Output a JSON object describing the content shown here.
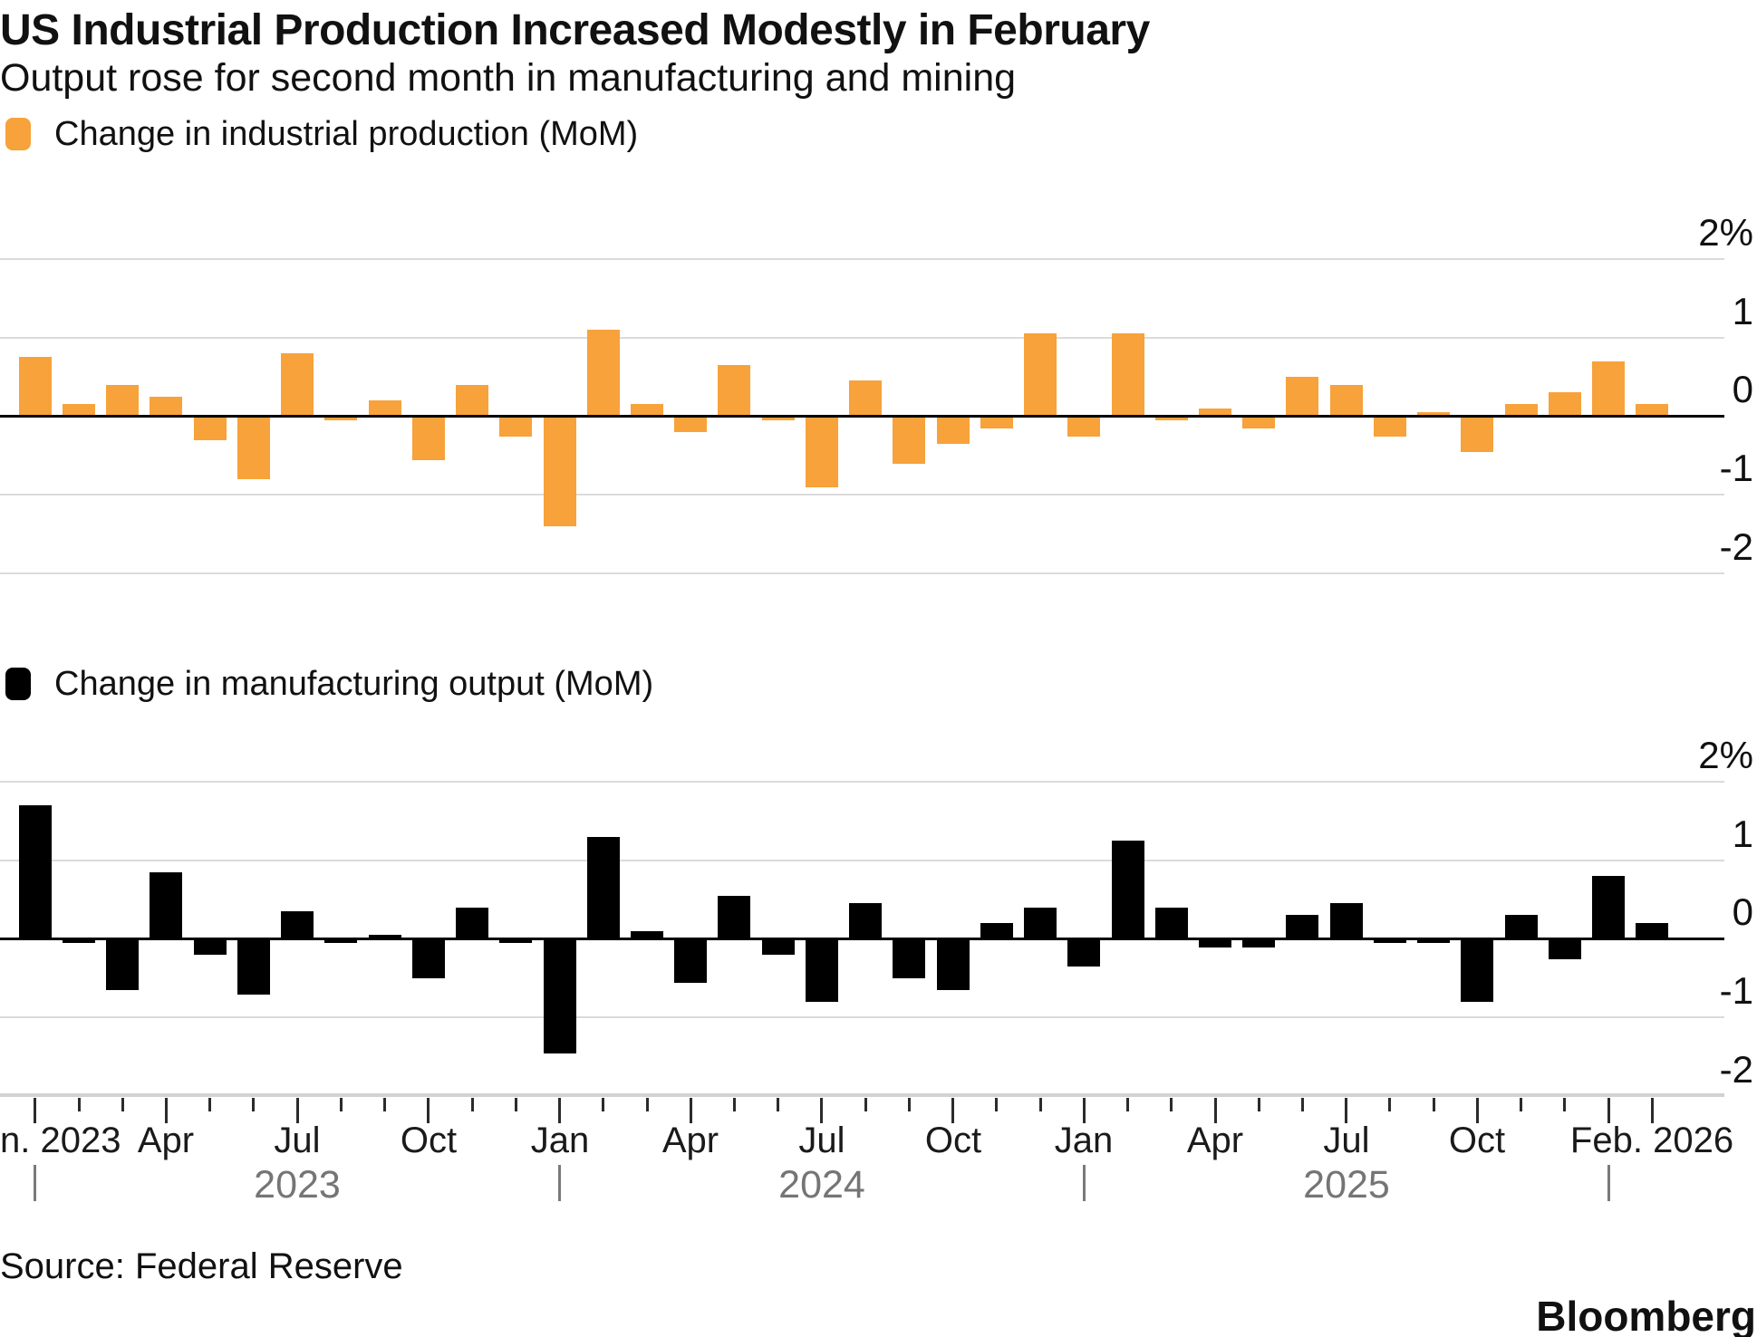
{
  "header": {
    "title": "US Industrial Production Increased Modestly in February",
    "subtitle": "Output rose for second month in manufacturing and mining"
  },
  "footer": {
    "source": "Source: Federal Reserve",
    "brand": "Bloomberg"
  },
  "colors": {
    "industrial_orange": "#F7A23A",
    "manufacturing_black": "#000000",
    "gridline_gray": "#DBDBDB",
    "axis_baseline_gray": "#D2D2D2",
    "zero_line_black": "#000000",
    "year_text_gray": "#757575"
  },
  "chart_data": [
    {
      "type": "bar",
      "title": "Change in industrial production (MoM)",
      "ylabel": "%",
      "xlabel": "",
      "color": "#F7A23A",
      "ylim": [
        -2,
        2
      ],
      "grid": true,
      "legend_position": "top-left",
      "yticks": [
        {
          "label": "2%",
          "value": 2
        },
        {
          "label": "1",
          "value": 1
        },
        {
          "label": "0",
          "value": 0
        },
        {
          "label": "-1",
          "value": -1
        },
        {
          "label": "-2",
          "value": -2
        }
      ],
      "categories": [
        "Jan 2023",
        "Feb 2023",
        "Mar 2023",
        "Apr 2023",
        "May 2023",
        "Jun 2023",
        "Jul 2023",
        "Aug 2023",
        "Sep 2023",
        "Oct 2023",
        "Nov 2023",
        "Dec 2023",
        "Jan 2024",
        "Feb 2024",
        "Mar 2024",
        "Apr 2024",
        "May 2024",
        "Jun 2024",
        "Jul 2024",
        "Aug 2024",
        "Sep 2024",
        "Oct 2024",
        "Nov 2024",
        "Dec 2024",
        "Jan 2025",
        "Feb 2025",
        "Mar 2025",
        "Apr 2025",
        "May 2025",
        "Jun 2025",
        "Jul 2025",
        "Aug 2025",
        "Sep 2025",
        "Oct 2025",
        "Nov 2025",
        "Dec 2025",
        "Jan 2026",
        "Feb 2026"
      ],
      "values": [
        0.75,
        0.15,
        0.4,
        0.25,
        -0.3,
        -0.8,
        0.8,
        -0.05,
        0.2,
        -0.55,
        0.4,
        -0.25,
        -1.4,
        1.1,
        0.15,
        -0.2,
        0.65,
        -0.05,
        -0.9,
        0.45,
        -0.6,
        -0.35,
        -0.15,
        1.05,
        -0.25,
        1.05,
        -0.05,
        0.1,
        -0.15,
        0.5,
        0.4,
        -0.25,
        0.05,
        -0.45,
        0.15,
        0.3,
        0.7,
        0.15
      ]
    },
    {
      "type": "bar",
      "title": "Change in manufacturing output (MoM)",
      "ylabel": "%",
      "xlabel": "",
      "color": "#000000",
      "ylim": [
        -2,
        2
      ],
      "grid": true,
      "legend_position": "top-left",
      "yticks": [
        {
          "label": "2%",
          "value": 2
        },
        {
          "label": "1",
          "value": 1
        },
        {
          "label": "0",
          "value": 0
        },
        {
          "label": "-1",
          "value": -1
        },
        {
          "label": "-2",
          "value": -2
        }
      ],
      "categories": [
        "Jan 2023",
        "Feb 2023",
        "Mar 2023",
        "Apr 2023",
        "May 2023",
        "Jun 2023",
        "Jul 2023",
        "Aug 2023",
        "Sep 2023",
        "Oct 2023",
        "Nov 2023",
        "Dec 2023",
        "Jan 2024",
        "Feb 2024",
        "Mar 2024",
        "Apr 2024",
        "May 2024",
        "Jun 2024",
        "Jul 2024",
        "Aug 2024",
        "Sep 2024",
        "Oct 2024",
        "Nov 2024",
        "Dec 2024",
        "Jan 2025",
        "Feb 2025",
        "Mar 2025",
        "Apr 2025",
        "May 2025",
        "Jun 2025",
        "Jul 2025",
        "Aug 2025",
        "Sep 2025",
        "Oct 2025",
        "Nov 2025",
        "Dec 2025",
        "Jan 2026",
        "Feb 2026"
      ],
      "values": [
        1.7,
        -0.05,
        -0.65,
        0.85,
        -0.2,
        -0.7,
        0.35,
        -0.05,
        0.05,
        -0.5,
        0.4,
        -0.05,
        -1.45,
        1.3,
        0.1,
        -0.55,
        0.55,
        -0.2,
        -0.8,
        0.45,
        -0.5,
        -0.65,
        0.2,
        0.4,
        -0.35,
        1.25,
        0.4,
        -0.1,
        -0.1,
        0.3,
        0.45,
        -0.05,
        -0.05,
        -0.8,
        0.3,
        -0.25,
        0.8,
        0.2
      ]
    }
  ],
  "x_axis": {
    "month_tick_labels": [
      {
        "label": "n. 2023",
        "month_index": 0,
        "align": "left"
      },
      {
        "label": "Apr",
        "month_index": 3
      },
      {
        "label": "Jul",
        "month_index": 6
      },
      {
        "label": "Oct",
        "month_index": 9
      },
      {
        "label": "Jan",
        "month_index": 12
      },
      {
        "label": "Apr",
        "month_index": 15
      },
      {
        "label": "Jul",
        "month_index": 18
      },
      {
        "label": "Oct",
        "month_index": 21
      },
      {
        "label": "Jan",
        "month_index": 24
      },
      {
        "label": "Apr",
        "month_index": 27
      },
      {
        "label": "Jul",
        "month_index": 30
      },
      {
        "label": "Oct",
        "month_index": 33
      },
      {
        "label": "Feb. 2026",
        "month_index": 37
      }
    ],
    "major_tick_month_indices": [
      0,
      3,
      6,
      9,
      12,
      15,
      18,
      21,
      24,
      27,
      30,
      33,
      36,
      37
    ],
    "year_row": {
      "separator_month_indices": [
        0,
        12,
        24,
        36
      ],
      "year_labels": [
        {
          "label": "2023",
          "month_index": 6
        },
        {
          "label": "2024",
          "month_index": 18
        },
        {
          "label": "2025",
          "month_index": 30
        }
      ]
    }
  }
}
